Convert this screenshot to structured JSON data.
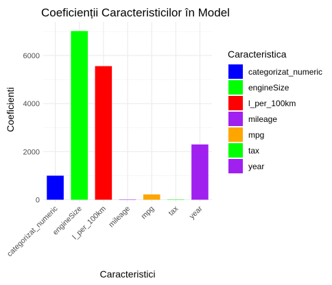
{
  "chart_data": {
    "type": "bar",
    "title": "Coeficienții Caracteristicilor în Model",
    "xlabel": "Caracteristici",
    "ylabel": "Coeficienti",
    "categories": [
      "categorizat_numeric",
      "engineSize",
      "l_per_100km",
      "mileage",
      "mpg",
      "tax",
      "year"
    ],
    "values": [
      1000,
      7020,
      5560,
      3,
      220,
      5,
      2300
    ],
    "colors": [
      "#0000FF",
      "#00FF00",
      "#FF0000",
      "#A020F0",
      "#FFA500",
      "#00FF00",
      "#A020F0"
    ],
    "ylim": [
      -100,
      7400
    ],
    "yticks": [
      0,
      2000,
      4000,
      6000
    ],
    "ytick_labels": [
      "0",
      "2000",
      "4000",
      "6000"
    ],
    "grid": true,
    "legend": {
      "title": "Caracteristica",
      "placement": "right",
      "entries": [
        {
          "label": "categorizat_numeric",
          "color": "#0000FF"
        },
        {
          "label": "engineSize",
          "color": "#00FF00"
        },
        {
          "label": "l_per_100km",
          "color": "#FF0000"
        },
        {
          "label": "mileage",
          "color": "#A020F0"
        },
        {
          "label": "mpg",
          "color": "#FFA500"
        },
        {
          "label": "tax",
          "color": "#00FF00"
        },
        {
          "label": "year",
          "color": "#A020F0"
        }
      ]
    }
  }
}
